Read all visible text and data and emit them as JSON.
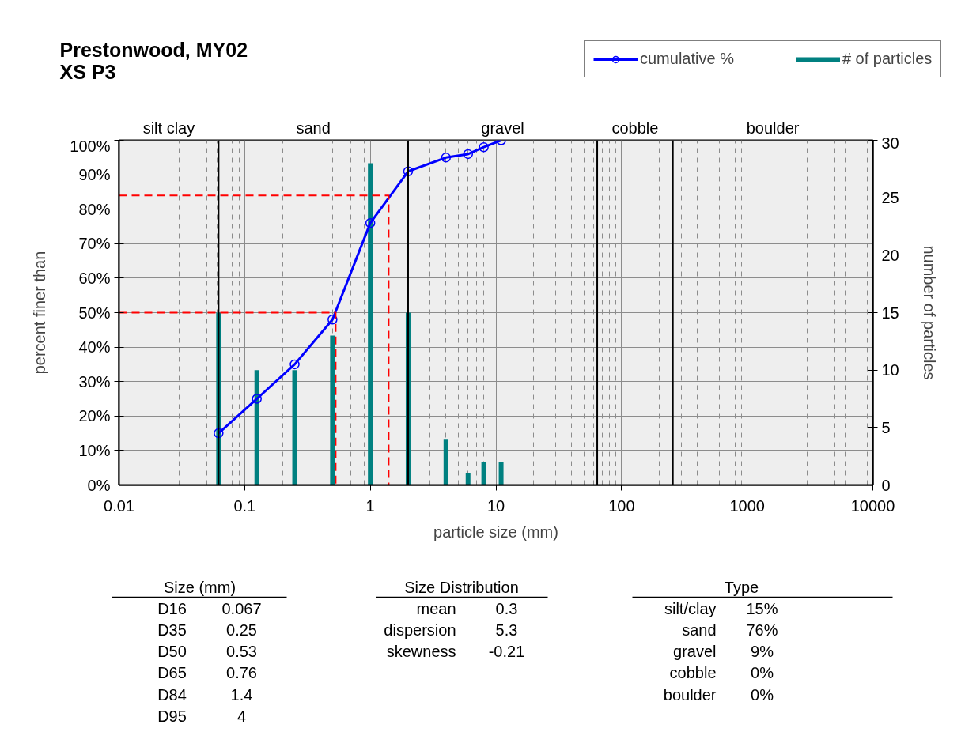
{
  "chart_data": {
    "type": "line",
    "title": "Prestonwood, MY02",
    "subtitle": "XS P3",
    "xlabel": "particle size (mm)",
    "ylabel": "percent finer than",
    "y2label": "number of particles",
    "log": "x",
    "xlim": [
      0.01,
      10000
    ],
    "xticks": [
      0.01,
      0.1,
      1,
      10,
      100,
      1000,
      10000
    ],
    "ylim": [
      0,
      100
    ],
    "yticks": [
      {
        "value": 0,
        "label": "0%"
      },
      {
        "value": 10,
        "label": "10%"
      },
      {
        "value": 20,
        "label": "20%"
      },
      {
        "value": 30,
        "label": "30%"
      },
      {
        "value": 40,
        "label": "40%"
      },
      {
        "value": 50,
        "label": "50%"
      },
      {
        "value": 60,
        "label": "60%"
      },
      {
        "value": 70,
        "label": "70%"
      },
      {
        "value": 80,
        "label": "80%"
      },
      {
        "value": 90,
        "label": "90%"
      },
      {
        "value": 100,
        "label": "100%"
      }
    ],
    "y2lim": [
      0,
      30
    ],
    "y2ticks": [
      0,
      5,
      10,
      15,
      20,
      25,
      30
    ],
    "grid": true,
    "legend": "top right",
    "series": [
      {
        "name": "cumulative %",
        "color": "#0000ff",
        "marker": "circle",
        "x": [
          0.062,
          0.125,
          0.25,
          0.5,
          1,
          2,
          4,
          6,
          8,
          11
        ],
        "values": [
          15,
          25,
          35,
          48,
          76,
          91,
          95,
          96,
          98,
          100
        ]
      },
      {
        "name": "# of particles",
        "type": "bar",
        "axis": "y2",
        "color": "#008080",
        "x": [
          0.062,
          0.125,
          0.25,
          0.5,
          1,
          2,
          4,
          6,
          8,
          11
        ],
        "values": [
          15,
          10,
          10,
          13,
          28,
          15,
          4,
          1,
          2,
          2
        ]
      },
      {
        "color": "#ff0000",
        "line_style": "dashed",
        "x": [
          0.01,
          0.53,
          0.53
        ],
        "values": [
          50,
          50,
          0
        ]
      },
      {
        "color": "#ff0000",
        "line_style": "dashed",
        "x": [
          0.01,
          1.4,
          1.4
        ],
        "values": [
          84,
          84,
          0
        ]
      }
    ],
    "bands": [
      {
        "axis": "x",
        "from": 0.01,
        "to": 0.062,
        "label": "silt clay",
        "color": "#eeeeee"
      },
      {
        "axis": "x",
        "from": 0.062,
        "to": 2,
        "label": "sand",
        "color": "#eeeeee"
      },
      {
        "axis": "x",
        "from": 2,
        "to": 64,
        "label": "gravel",
        "color": "#eeeeee"
      },
      {
        "axis": "x",
        "from": 64,
        "to": 256,
        "label": "cobble",
        "color": "#eeeeee"
      },
      {
        "axis": "x",
        "from": 256,
        "to": 10000,
        "label": "boulder",
        "color": "#eeeeee"
      }
    ],
    "annotations": [
      "Size (mm)",
      "D16",
      "0.067",
      "D35",
      "0.25",
      "D50",
      "0.53",
      "D65",
      "0.76",
      "D84",
      "1.4",
      "D95",
      "4",
      "Size Distribution",
      "mean",
      "0.3",
      "dispersion",
      "5.3",
      "skewness",
      "-0.21",
      "Type",
      "silt/clay",
      "15%",
      "sand",
      "76%",
      "gravel",
      "9%",
      "cobble",
      "0%",
      "boulder",
      "0%"
    ]
  }
}
